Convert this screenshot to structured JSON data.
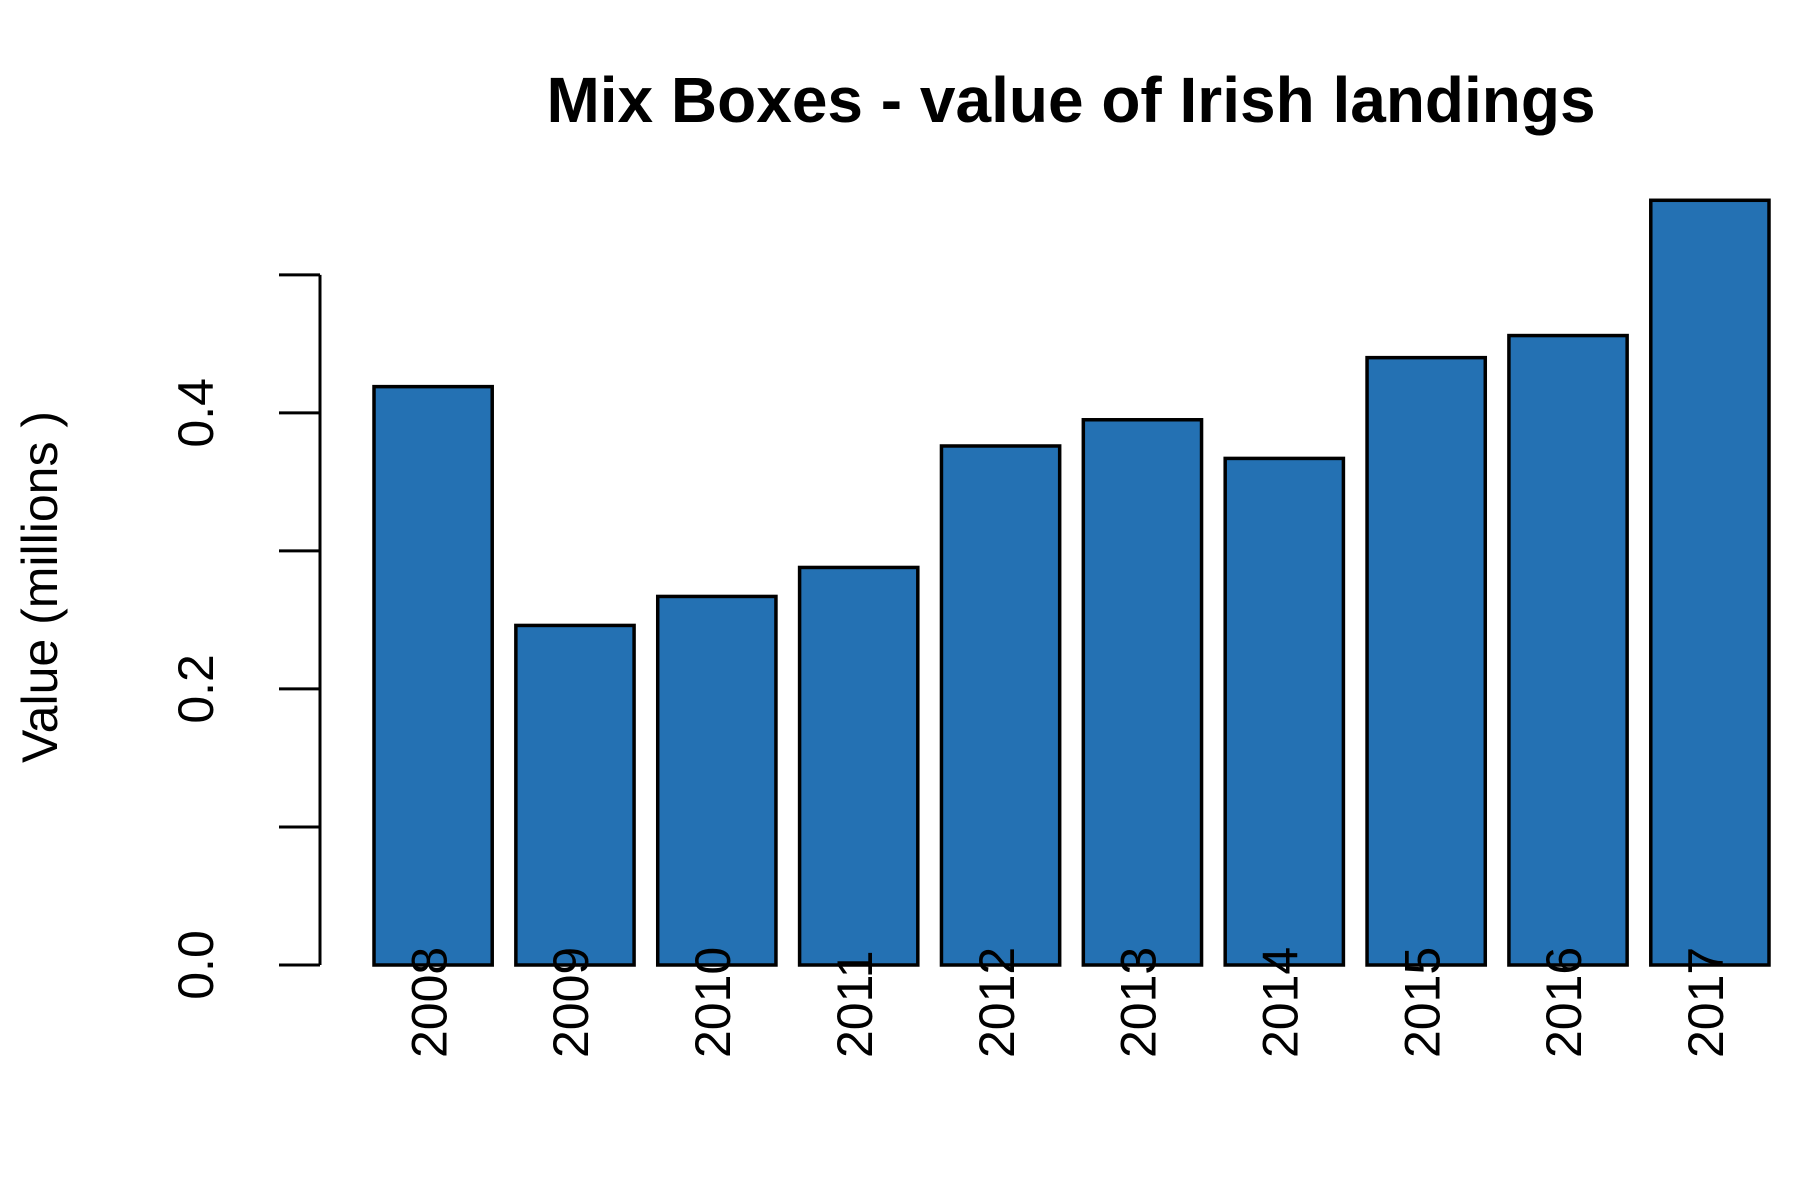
{
  "chart_data": {
    "type": "bar",
    "title": "Mix Boxes - value of Irish landings",
    "y_label": "Value (millions )",
    "categories": [
      "2008",
      "2009",
      "2010",
      "2011",
      "2012",
      "2013",
      "2014",
      "2015",
      "2016",
      "2017"
    ],
    "values": [
      0.419,
      0.246,
      0.267,
      0.288,
      0.376,
      0.395,
      0.367,
      0.44,
      0.456,
      0.554
    ],
    "color": "#2471b3",
    "ylim": [
      0,
      0.56
    ],
    "yticks": [
      {
        "value": 0,
        "label": "0.0"
      },
      {
        "value": 0.1,
        "label": null
      },
      0.2,
      {
        "value": 0.3,
        "label": null
      },
      0.4,
      {
        "value": 0.5,
        "label": null
      }
    ],
    "grid": false
  }
}
